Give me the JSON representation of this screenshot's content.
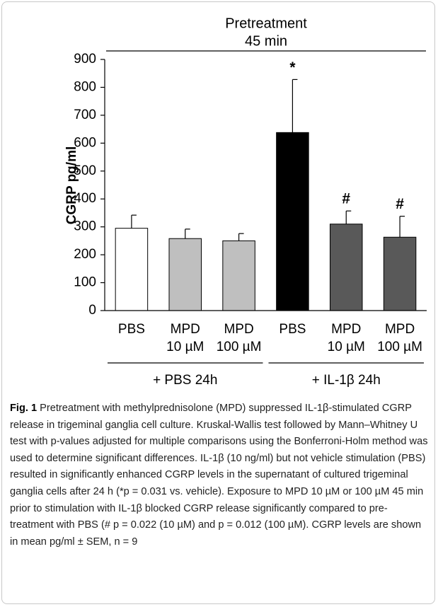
{
  "chart_data": {
    "type": "bar",
    "title": "Pretreatment",
    "subtitle": "45 min",
    "y_label": "CGRP pg/ml",
    "categories": [
      "PBS",
      "MPD",
      "MPD",
      "PBS",
      "MPD",
      "MPD"
    ],
    "category_sublabels": [
      null,
      "10 µM",
      "100 µM",
      null,
      "10 µM",
      "100 µM"
    ],
    "values": [
      295,
      258,
      250,
      638,
      310,
      263
    ],
    "errors": [
      47,
      34,
      26,
      190,
      47,
      75
    ],
    "colors": [
      "#ffffff",
      "#bfbfbf",
      "#bfbfbf",
      "#000000",
      "#595959",
      "#595959"
    ],
    "significance": [
      null,
      null,
      null,
      "*",
      "#",
      "#"
    ],
    "groups": [
      "+ PBS 24h",
      "+ IL-1β 24h"
    ],
    "ylim": [
      0,
      900
    ],
    "yticks": [
      0,
      100,
      200,
      300,
      400,
      500,
      600,
      700,
      800,
      900
    ],
    "grid": false
  },
  "caption": {
    "label": "Fig. 1",
    "text": "Pretreatment with methylprednisolone (MPD) suppressed IL-1β-stimulated CGRP release in trigeminal ganglia cell culture. Kruskal-Wallis test followed by Mann–Whitney U test with p-values adjusted for multiple comparisons using the Bonferroni-Holm method was used to determine significant differences. IL-1β (10 ng/ml) but not vehicle stimulation (PBS) resulted in significantly enhanced CGRP levels in the supernatant of cultured trigeminal ganglia cells after 24 h (*p = 0.031 vs. vehicle). Exposure to MPD 10 µM or 100 µM 45 min prior to stimulation with IL-1β blocked CGRP release significantly compared to pre-treatment with PBS (# p = 0.022 (10 µM) and p = 0.012 (100 µM). CGRP levels are shown in mean pg/ml ± SEM, n = 9"
  }
}
